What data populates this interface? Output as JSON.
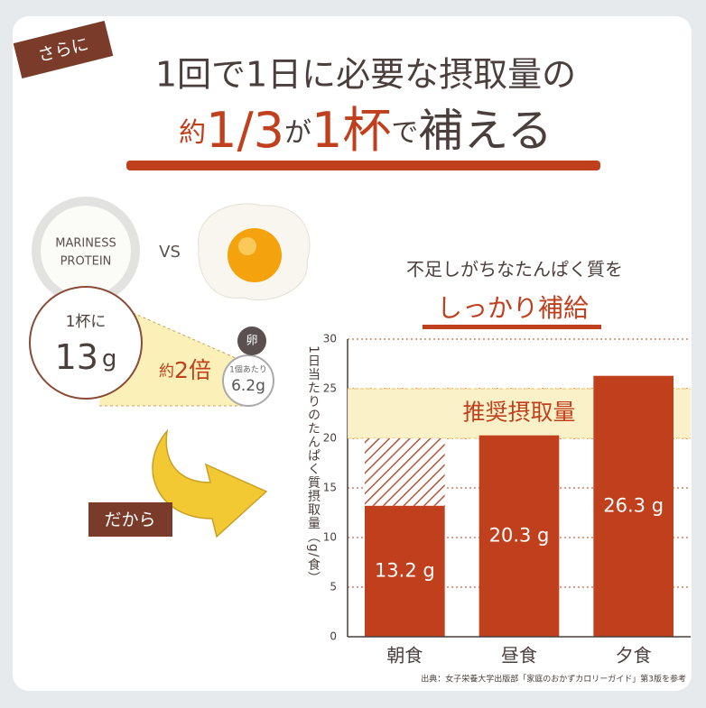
{
  "badge": "さらに",
  "headline": {
    "line1": "1回で1日に必要な摂取量の",
    "line2": [
      "約",
      "1/3",
      "が",
      "1杯",
      "で",
      "補える"
    ]
  },
  "product": {
    "name_line1": "MARINESS",
    "name_line2": "PROTEIN",
    "vs": "VS",
    "per_cup": "1杯に",
    "amount": "13",
    "unit": "g",
    "ratio_prefix": "約",
    "ratio": "2倍"
  },
  "egg": {
    "label": "卵",
    "per": "1個あたり",
    "amount": "6.2g"
  },
  "cta": "だから",
  "chart_data": {
    "type": "bar",
    "title": "不足しがちなたんぱく質を",
    "subtitle": "しっかり補給",
    "y_label": "1日当たりのたんぱく質摂取量（g/食）",
    "categories": [
      "朝食",
      "昼食",
      "夕食"
    ],
    "values": [
      13.2,
      20.3,
      26.3
    ],
    "value_labels": [
      "13.2 g",
      "20.3 g",
      "26.3 g"
    ],
    "color": "#c0401e",
    "ylim": [
      0,
      30
    ],
    "yticks": [
      0,
      5,
      10,
      15,
      20,
      25,
      30
    ],
    "grid": true,
    "band": {
      "label": "推奨摂取量",
      "range": [
        20,
        25
      ]
    },
    "source": "出典：女子栄養大学出版部「家庭のおかずカロリーガイド」第3版を参考"
  }
}
